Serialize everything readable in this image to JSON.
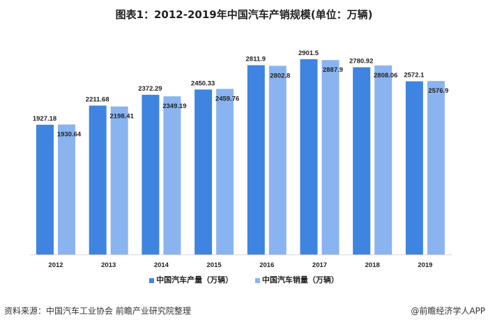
{
  "title": "图表1：2012-2019年中国汽车产销规模(单位：万辆)",
  "chart_data": {
    "type": "bar",
    "title": "图表1：2012-2019年中国汽车产销规模(单位：万辆)",
    "categories": [
      "2012",
      "2013",
      "2014",
      "2015",
      "2016",
      "2017",
      "2018",
      "2019"
    ],
    "series": [
      {
        "name": "中国汽车产量（万辆）",
        "color": "#3f84e0",
        "values": [
          1927.18,
          2211.68,
          2372.29,
          2450.33,
          2811.9,
          2901.5,
          2780.92,
          2572.1
        ]
      },
      {
        "name": "中国汽车销量（万辆）",
        "color": "#8ab4f0",
        "values": [
          1930.64,
          2198.41,
          2349.19,
          2459.76,
          2802.8,
          2887.9,
          2808.06,
          2576.9
        ]
      }
    ],
    "value_labels": [
      [
        "1927.18",
        "2211.68",
        "2372.29",
        "2450.33",
        "2811.9",
        "2901.5",
        "2780.92",
        "2572.1"
      ],
      [
        "1930.64",
        "2198.41",
        "2349.19",
        "2459.76",
        "2802.8",
        "2887.9",
        "2808.06",
        "2576.9"
      ]
    ],
    "ylim": [
      0,
      3780
    ],
    "grid": false,
    "legend": "bottom"
  },
  "footer": {
    "source": "资料来源：中国汽车工业协会 前瞻产业研究院整理",
    "brand": "@前瞻经济学人APP"
  },
  "watermark": "前瞻产业研究院"
}
